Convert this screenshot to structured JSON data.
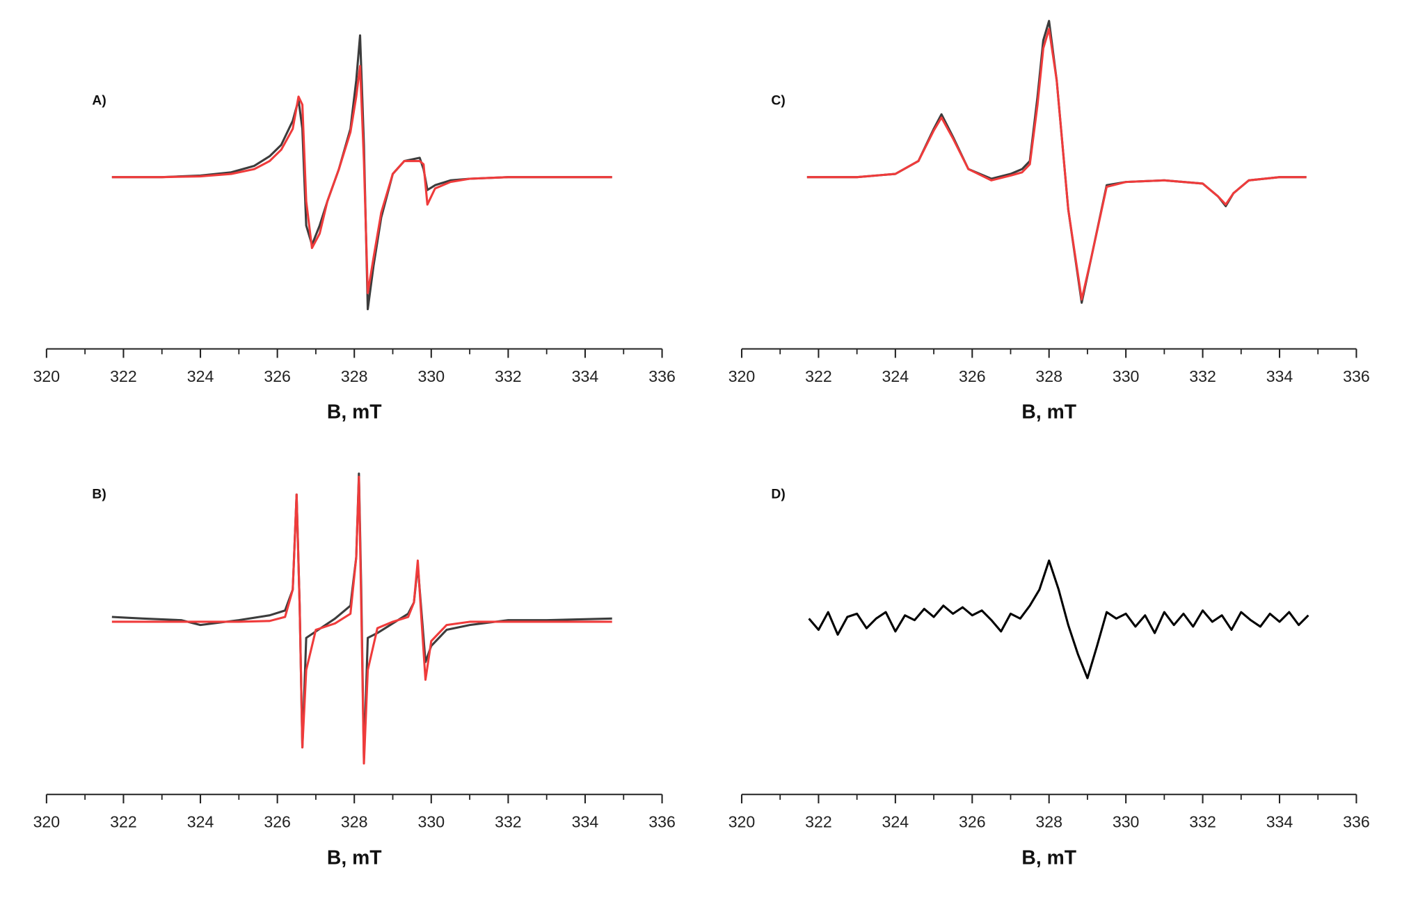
{
  "chart_data": [
    {
      "type": "line",
      "label": "A)",
      "xlabel": "B, mT",
      "xlim": [
        320,
        336
      ],
      "ylim": [
        -1,
        1
      ],
      "xticks": [
        320,
        322,
        324,
        326,
        328,
        330,
        332,
        334,
        336
      ],
      "xminor_ticks": [
        321,
        323,
        325,
        327,
        329,
        331,
        333,
        335
      ],
      "x": [
        321.7,
        323,
        324,
        324.8,
        325.4,
        325.8,
        326.1,
        326.4,
        326.55,
        326.65,
        326.75,
        326.9,
        327.1,
        327.3,
        327.6,
        327.9,
        328.05,
        328.15,
        328.25,
        328.35,
        328.5,
        328.7,
        329,
        329.3,
        329.7,
        329.8,
        329.9,
        330.1,
        330.5,
        331,
        332,
        333,
        334.7
      ],
      "series": [
        {
          "color": "#3c3c3c",
          "values": [
            0,
            0,
            0.01,
            0.03,
            0.07,
            0.13,
            0.2,
            0.35,
            0.48,
            0.3,
            -0.3,
            -0.42,
            -0.3,
            -0.15,
            0.05,
            0.3,
            0.6,
            0.88,
            0.2,
            -0.82,
            -0.55,
            -0.25,
            0.02,
            0.1,
            0.12,
            0.05,
            -0.08,
            -0.05,
            -0.02,
            -0.01,
            0,
            0,
            0
          ]
        },
        {
          "color": "#ef3b3b",
          "values": [
            0,
            0,
            0.005,
            0.02,
            0.05,
            0.1,
            0.17,
            0.3,
            0.5,
            0.45,
            -0.15,
            -0.44,
            -0.35,
            -0.15,
            0.05,
            0.28,
            0.5,
            0.69,
            0.1,
            -0.72,
            -0.5,
            -0.22,
            0.02,
            0.1,
            0.1,
            0.08,
            -0.17,
            -0.07,
            -0.03,
            -0.01,
            0,
            0,
            0
          ]
        }
      ]
    },
    {
      "type": "line",
      "label": "C)",
      "xlabel": "B, mT",
      "xlim": [
        320,
        336
      ],
      "ylim": [
        -1,
        1
      ],
      "xticks": [
        320,
        322,
        324,
        326,
        328,
        330,
        332,
        334,
        336
      ],
      "xminor_ticks": [
        321,
        323,
        325,
        327,
        329,
        331,
        333,
        335
      ],
      "x": [
        321.7,
        323,
        324,
        324.6,
        325,
        325.2,
        325.5,
        325.9,
        326.5,
        327,
        327.3,
        327.5,
        327.7,
        327.85,
        328,
        328.2,
        328.5,
        328.85,
        329.1,
        329.5,
        330,
        331,
        332,
        332.4,
        332.6,
        332.8,
        333.2,
        334,
        334.7
      ],
      "series": [
        {
          "color": "#3c3c3c",
          "values": [
            0,
            0,
            0.02,
            0.1,
            0.3,
            0.39,
            0.25,
            0.05,
            -0.01,
            0.02,
            0.05,
            0.1,
            0.5,
            0.85,
            0.97,
            0.6,
            -0.2,
            -0.78,
            -0.5,
            -0.05,
            -0.03,
            -0.02,
            -0.04,
            -0.12,
            -0.18,
            -0.1,
            -0.02,
            0,
            0
          ]
        },
        {
          "color": "#ef3b3b",
          "values": [
            0,
            0,
            0.02,
            0.1,
            0.29,
            0.37,
            0.24,
            0.05,
            -0.02,
            0.01,
            0.03,
            0.08,
            0.45,
            0.8,
            0.92,
            0.6,
            -0.2,
            -0.76,
            -0.5,
            -0.06,
            -0.03,
            -0.02,
            -0.04,
            -0.12,
            -0.17,
            -0.1,
            -0.02,
            0,
            0
          ]
        }
      ]
    },
    {
      "type": "line",
      "label": "B)",
      "xlabel": "B, mT",
      "xlim": [
        320,
        336
      ],
      "ylim": [
        -1,
        1
      ],
      "xticks": [
        320,
        322,
        324,
        326,
        328,
        330,
        332,
        334,
        336
      ],
      "xminor_ticks": [
        321,
        323,
        325,
        327,
        329,
        331,
        333,
        335
      ],
      "x": [
        321.7,
        322.5,
        323.5,
        324,
        325,
        325.8,
        326.2,
        326.4,
        326.5,
        326.58,
        326.65,
        326.75,
        327,
        327.5,
        327.9,
        328.05,
        328.12,
        328.18,
        328.25,
        328.35,
        328.6,
        329,
        329.4,
        329.55,
        329.65,
        329.75,
        329.85,
        330,
        330.4,
        331,
        332,
        333,
        334.7
      ],
      "series": [
        {
          "color": "#3c3c3c",
          "values": [
            0.03,
            0.02,
            0.01,
            -0.02,
            0.01,
            0.04,
            0.07,
            0.2,
            0.79,
            0.1,
            -0.78,
            -0.1,
            -0.06,
            0.02,
            0.1,
            0.4,
            0.92,
            0.2,
            -0.85,
            -0.1,
            -0.07,
            -0.01,
            0.05,
            0.12,
            0.35,
            0.05,
            -0.25,
            -0.15,
            -0.05,
            -0.02,
            0.01,
            0.01,
            0.02
          ]
        },
        {
          "color": "#ef3b3b",
          "values": [
            0,
            0,
            0,
            0,
            0,
            0.005,
            0.03,
            0.2,
            0.79,
            0.1,
            -0.78,
            -0.3,
            -0.05,
            -0.01,
            0.05,
            0.4,
            0.9,
            0.1,
            -0.88,
            -0.3,
            -0.04,
            0,
            0.03,
            0.12,
            0.38,
            0,
            -0.36,
            -0.12,
            -0.02,
            0,
            0,
            0,
            0
          ]
        }
      ]
    },
    {
      "type": "line",
      "label": "D)",
      "xlabel": "B, mT",
      "xlim": [
        320,
        336
      ],
      "ylim": [
        -1,
        1
      ],
      "xticks": [
        320,
        322,
        324,
        326,
        328,
        330,
        332,
        334,
        336
      ],
      "xminor_ticks": [
        321,
        323,
        325,
        327,
        329,
        331,
        333,
        335
      ],
      "x": [
        321.75,
        322,
        322.25,
        322.5,
        322.75,
        323,
        323.25,
        323.5,
        323.75,
        324,
        324.25,
        324.5,
        324.75,
        325,
        325.25,
        325.5,
        325.75,
        326,
        326.25,
        326.5,
        326.75,
        327,
        327.25,
        327.5,
        327.75,
        328,
        328.25,
        328.5,
        328.75,
        329,
        329.25,
        329.5,
        329.75,
        330,
        330.25,
        330.5,
        330.75,
        331,
        331.25,
        331.5,
        331.75,
        332,
        332.25,
        332.5,
        332.75,
        333,
        333.25,
        333.5,
        333.75,
        334,
        334.25,
        334.5,
        334.75
      ],
      "series": [
        {
          "color": "#000000",
          "values": [
            0.02,
            -0.05,
            0.06,
            -0.08,
            0.03,
            0.05,
            -0.04,
            0.02,
            0.06,
            -0.06,
            0.04,
            0.01,
            0.08,
            0.03,
            0.1,
            0.05,
            0.09,
            0.04,
            0.07,
            0.01,
            -0.06,
            0.05,
            0.02,
            0.1,
            0.2,
            0.38,
            0.2,
            -0.02,
            -0.2,
            -0.35,
            -0.15,
            0.06,
            0.02,
            0.05,
            -0.03,
            0.04,
            -0.07,
            0.06,
            -0.02,
            0.05,
            -0.03,
            0.07,
            0,
            0.04,
            -0.05,
            0.06,
            0.01,
            -0.03,
            0.05,
            0,
            0.06,
            -0.02,
            0.04
          ]
        }
      ]
    }
  ]
}
